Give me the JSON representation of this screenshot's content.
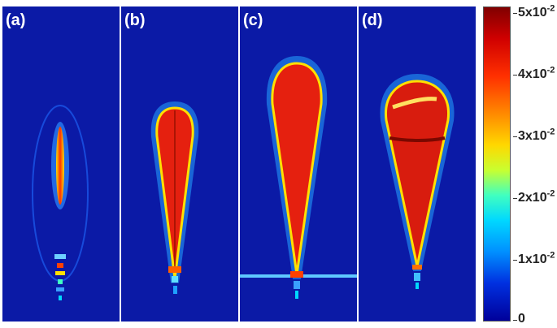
{
  "panels": [
    {
      "label": "(a)"
    },
    {
      "label": "(b)"
    },
    {
      "label": "(c)"
    },
    {
      "label": "(d)"
    }
  ],
  "colorbar": {
    "ticks": [
      {
        "base": "5x10",
        "exp": "-2"
      },
      {
        "base": "4x10",
        "exp": "-2"
      },
      {
        "base": "3x10",
        "exp": "-2"
      },
      {
        "base": "2x10",
        "exp": "-2"
      },
      {
        "base": "1x10",
        "exp": "-2"
      },
      {
        "base": "0",
        "exp": ""
      }
    ],
    "colors": {
      "max": "#800000",
      "high": "#ff3000",
      "mid": "#ffd800",
      "low": "#00d8ff",
      "min": "#00009a"
    }
  },
  "background_color": "#0b1aa6",
  "plume_color": "#e5200f"
}
